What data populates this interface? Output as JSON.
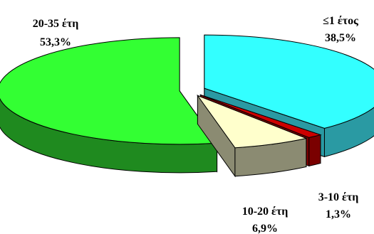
{
  "chart_data": {
    "type": "pie",
    "title": "",
    "style": "3d-exploded",
    "legend": "none",
    "slices": [
      {
        "label": "≤1 έτος",
        "value": 38.5,
        "value_text": "38,5%",
        "color": "#33FFFF",
        "side_color": "#2A9AA3"
      },
      {
        "label": "3-10 έτη",
        "value": 1.3,
        "value_text": "1,3%",
        "color": "#CC0000",
        "side_color": "#7A0000"
      },
      {
        "label": "10-20 έτη",
        "value": 6.9,
        "value_text": "6,9%",
        "color": "#FFFFCC",
        "side_color": "#8B8B72"
      },
      {
        "label": "20-35 έτη",
        "value": 53.3,
        "value_text": "53,3%",
        "color": "#33FF33",
        "side_color": "#1F8A1F"
      }
    ]
  }
}
